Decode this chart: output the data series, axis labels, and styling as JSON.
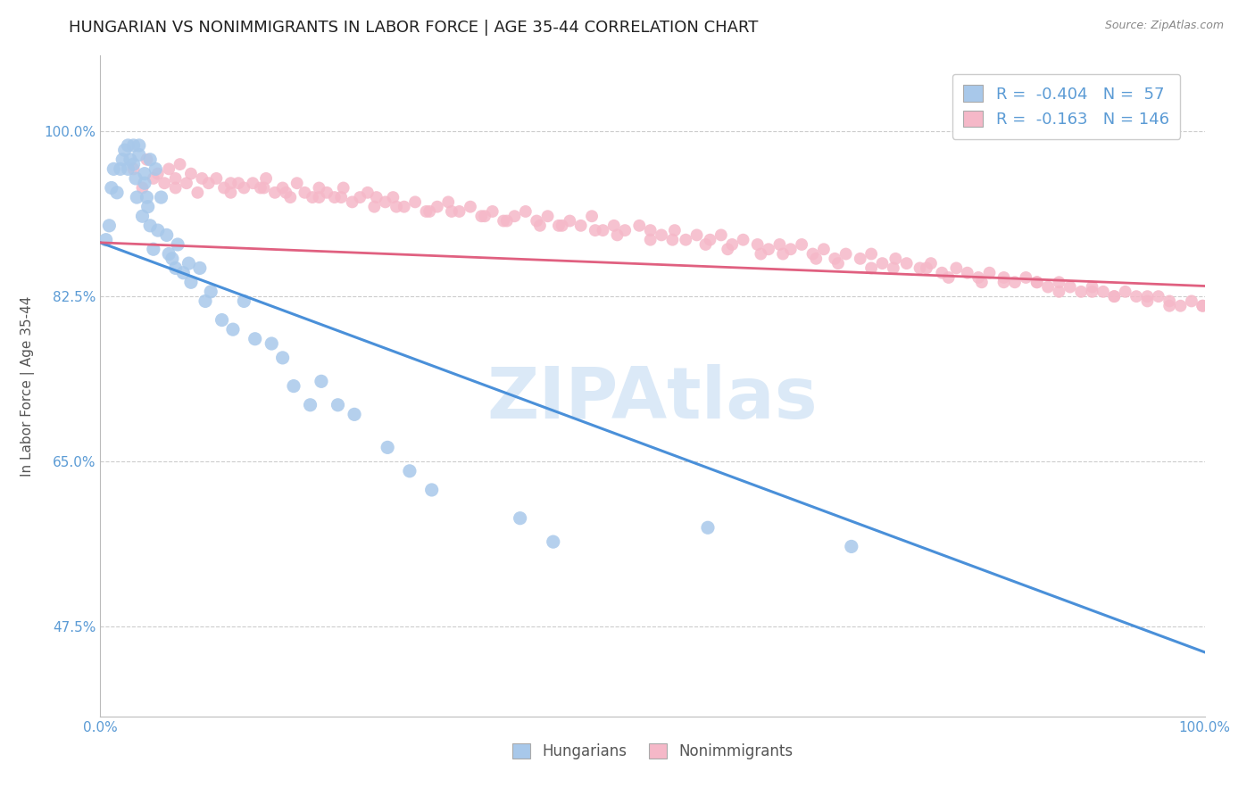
{
  "title": "HUNGARIAN VS NONIMMIGRANTS IN LABOR FORCE | AGE 35-44 CORRELATION CHART",
  "source": "Source: ZipAtlas.com",
  "ylabel": "In Labor Force | Age 35-44",
  "xlim": [
    0,
    1
  ],
  "ylim": [
    0.38,
    1.08
  ],
  "yticks": [
    0.475,
    0.65,
    0.825,
    1.0
  ],
  "ytick_labels": [
    "47.5%",
    "65.0%",
    "82.5%",
    "100.0%"
  ],
  "xticks": [
    0.0,
    0.1,
    0.2,
    0.3,
    0.4,
    0.5,
    0.6,
    0.7,
    0.8,
    0.9,
    1.0
  ],
  "xtick_labels": [
    "0.0%",
    "",
    "",
    "",
    "",
    "",
    "",
    "",
    "",
    "",
    "100.0%"
  ],
  "blue_color": "#a8c8ea",
  "pink_color": "#f5b8c8",
  "blue_line_color": "#4a90d9",
  "pink_line_color": "#e06080",
  "tick_color": "#5b9bd5",
  "legend_blue_R": "-0.404",
  "legend_blue_N": "57",
  "legend_pink_R": "-0.163",
  "legend_pink_N": "146",
  "legend_label_blue": "Hungarians",
  "legend_label_pink": "Nonimmigrants",
  "blue_trend_x0": 0.0,
  "blue_trend_x1": 1.0,
  "blue_trend_y0": 0.882,
  "blue_trend_y1": 0.448,
  "pink_trend_x0": 0.0,
  "pink_trend_x1": 1.0,
  "pink_trend_y0": 0.882,
  "pink_trend_y1": 0.836,
  "blue_x": [
    0.005,
    0.008,
    0.01,
    0.012,
    0.015,
    0.018,
    0.02,
    0.022,
    0.025,
    0.025,
    0.027,
    0.03,
    0.03,
    0.032,
    0.033,
    0.035,
    0.035,
    0.038,
    0.04,
    0.04,
    0.042,
    0.043,
    0.045,
    0.045,
    0.048,
    0.05,
    0.052,
    0.055,
    0.06,
    0.062,
    0.065,
    0.068,
    0.07,
    0.075,
    0.08,
    0.082,
    0.09,
    0.095,
    0.1,
    0.11,
    0.12,
    0.13,
    0.14,
    0.155,
    0.165,
    0.175,
    0.19,
    0.2,
    0.215,
    0.23,
    0.26,
    0.28,
    0.3,
    0.38,
    0.41,
    0.55,
    0.68
  ],
  "blue_y": [
    0.885,
    0.9,
    0.94,
    0.96,
    0.935,
    0.96,
    0.97,
    0.98,
    0.96,
    0.985,
    0.97,
    0.965,
    0.985,
    0.95,
    0.93,
    0.975,
    0.985,
    0.91,
    0.955,
    0.945,
    0.93,
    0.92,
    0.9,
    0.97,
    0.875,
    0.96,
    0.895,
    0.93,
    0.89,
    0.87,
    0.865,
    0.855,
    0.88,
    0.85,
    0.86,
    0.84,
    0.855,
    0.82,
    0.83,
    0.8,
    0.79,
    0.82,
    0.78,
    0.775,
    0.76,
    0.73,
    0.71,
    0.735,
    0.71,
    0.7,
    0.665,
    0.64,
    0.62,
    0.59,
    0.565,
    0.58,
    0.56
  ],
  "pink_x": [
    0.03,
    0.038,
    0.042,
    0.048,
    0.052,
    0.058,
    0.062,
    0.068,
    0.072,
    0.078,
    0.082,
    0.088,
    0.092,
    0.098,
    0.105,
    0.112,
    0.118,
    0.125,
    0.13,
    0.138,
    0.145,
    0.15,
    0.158,
    0.165,
    0.172,
    0.178,
    0.185,
    0.192,
    0.198,
    0.205,
    0.212,
    0.22,
    0.228,
    0.235,
    0.242,
    0.25,
    0.258,
    0.265,
    0.275,
    0.285,
    0.295,
    0.305,
    0.315,
    0.325,
    0.335,
    0.345,
    0.355,
    0.365,
    0.375,
    0.385,
    0.395,
    0.405,
    0.415,
    0.425,
    0.435,
    0.445,
    0.455,
    0.465,
    0.475,
    0.488,
    0.498,
    0.508,
    0.52,
    0.53,
    0.54,
    0.552,
    0.562,
    0.572,
    0.582,
    0.595,
    0.605,
    0.615,
    0.625,
    0.635,
    0.645,
    0.655,
    0.665,
    0.675,
    0.688,
    0.698,
    0.708,
    0.72,
    0.73,
    0.742,
    0.752,
    0.762,
    0.775,
    0.785,
    0.795,
    0.805,
    0.818,
    0.828,
    0.838,
    0.848,
    0.858,
    0.868,
    0.878,
    0.888,
    0.898,
    0.908,
    0.918,
    0.928,
    0.938,
    0.948,
    0.958,
    0.968,
    0.978,
    0.988,
    0.998,
    0.148,
    0.248,
    0.348,
    0.448,
    0.548,
    0.648,
    0.748,
    0.848,
    0.948,
    0.198,
    0.298,
    0.398,
    0.498,
    0.598,
    0.698,
    0.798,
    0.898,
    0.998,
    0.068,
    0.168,
    0.268,
    0.368,
    0.468,
    0.568,
    0.668,
    0.768,
    0.868,
    0.968,
    0.118,
    0.218,
    0.318,
    0.418,
    0.518,
    0.618,
    0.718,
    0.818,
    0.918
  ],
  "pink_y": [
    0.96,
    0.94,
    0.97,
    0.95,
    0.955,
    0.945,
    0.96,
    0.94,
    0.965,
    0.945,
    0.955,
    0.935,
    0.95,
    0.945,
    0.95,
    0.94,
    0.935,
    0.945,
    0.94,
    0.945,
    0.94,
    0.95,
    0.935,
    0.94,
    0.93,
    0.945,
    0.935,
    0.93,
    0.94,
    0.935,
    0.93,
    0.94,
    0.925,
    0.93,
    0.935,
    0.93,
    0.925,
    0.93,
    0.92,
    0.925,
    0.915,
    0.92,
    0.925,
    0.915,
    0.92,
    0.91,
    0.915,
    0.905,
    0.91,
    0.915,
    0.905,
    0.91,
    0.9,
    0.905,
    0.9,
    0.91,
    0.895,
    0.9,
    0.895,
    0.9,
    0.895,
    0.89,
    0.895,
    0.885,
    0.89,
    0.885,
    0.89,
    0.88,
    0.885,
    0.88,
    0.875,
    0.88,
    0.875,
    0.88,
    0.87,
    0.875,
    0.865,
    0.87,
    0.865,
    0.87,
    0.86,
    0.865,
    0.86,
    0.855,
    0.86,
    0.85,
    0.855,
    0.85,
    0.845,
    0.85,
    0.845,
    0.84,
    0.845,
    0.84,
    0.835,
    0.84,
    0.835,
    0.83,
    0.835,
    0.83,
    0.825,
    0.83,
    0.825,
    0.82,
    0.825,
    0.82,
    0.815,
    0.82,
    0.815,
    0.94,
    0.92,
    0.91,
    0.895,
    0.88,
    0.865,
    0.855,
    0.84,
    0.825,
    0.93,
    0.915,
    0.9,
    0.885,
    0.87,
    0.855,
    0.84,
    0.83,
    0.815,
    0.95,
    0.935,
    0.92,
    0.905,
    0.89,
    0.875,
    0.86,
    0.845,
    0.83,
    0.815,
    0.945,
    0.93,
    0.915,
    0.9,
    0.885,
    0.87,
    0.855,
    0.84,
    0.825
  ],
  "background_color": "#ffffff",
  "grid_color": "#cccccc",
  "title_fontsize": 13,
  "source_fontsize": 9,
  "axis_label_fontsize": 11,
  "tick_fontsize": 11,
  "legend_fontsize": 13
}
